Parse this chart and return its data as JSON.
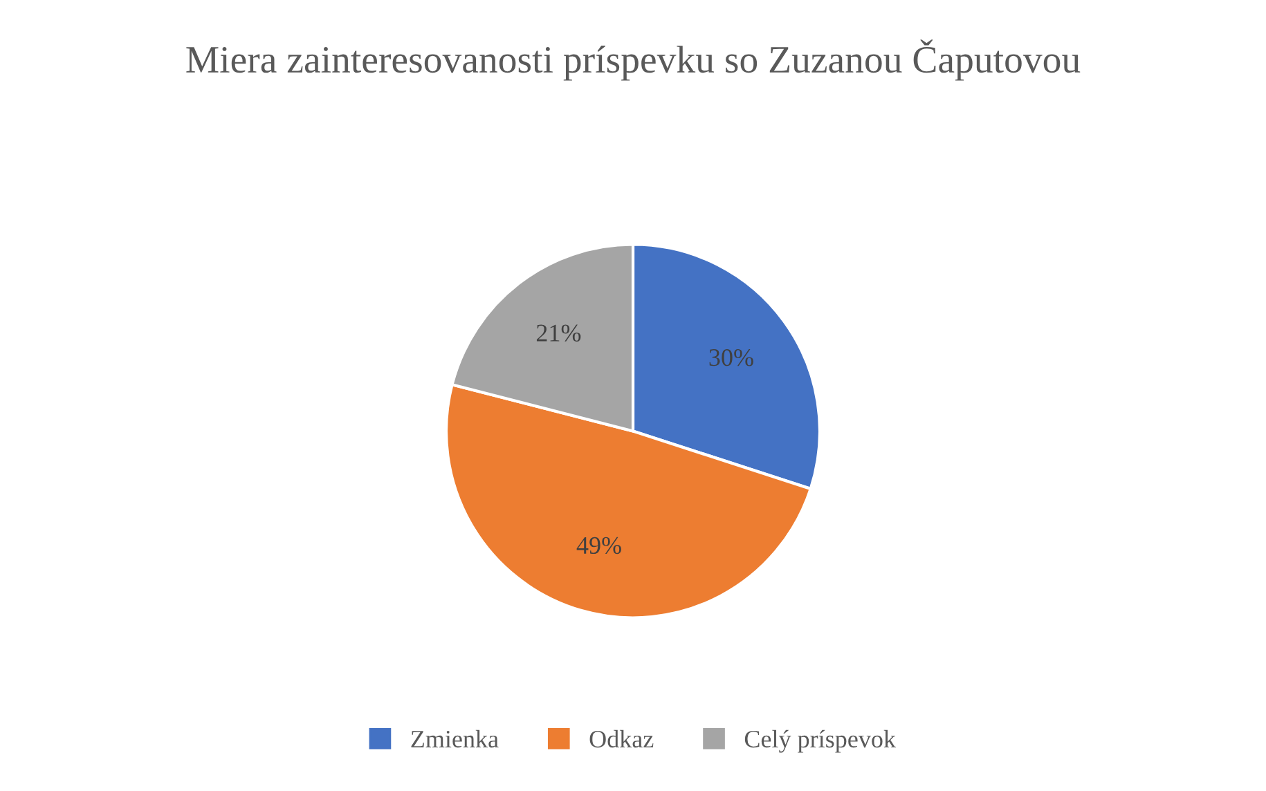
{
  "chart_data": {
    "type": "pie",
    "title": "Miera zainteresovanosti príspevku so Zuzanou Čaputovou",
    "categories": [
      "Zmienka",
      "Odkaz",
      "Celý príspevok"
    ],
    "values": [
      30,
      49,
      21
    ],
    "colors": [
      "#4472c4",
      "#ed7d31",
      "#a5a5a5"
    ],
    "value_labels": [
      "30%",
      "49%",
      "21%"
    ],
    "legend": "bottom"
  }
}
